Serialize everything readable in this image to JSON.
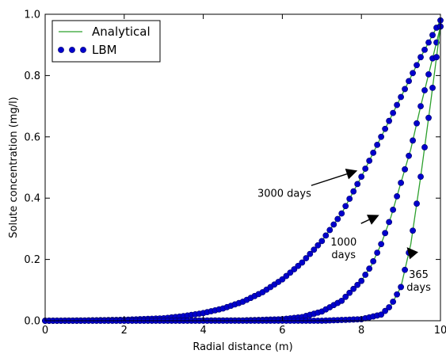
{
  "chart_data": {
    "type": "line",
    "xlabel": "Radial distance (m)",
    "ylabel": "Solute concentration (mg/l)",
    "xlim": [
      0,
      10
    ],
    "ylim": [
      0,
      1.0
    ],
    "xticks": [
      0,
      2,
      4,
      6,
      8,
      10
    ],
    "yticks": [
      0.0,
      0.2,
      0.4,
      0.6,
      0.8,
      1.0
    ],
    "xtick_labels": [
      "0",
      "2",
      "4",
      "6",
      "8",
      "10"
    ],
    "ytick_labels": [
      "0.0",
      "0.2",
      "0.4",
      "0.6",
      "0.8",
      "1.0"
    ],
    "grid": false,
    "legend": {
      "placement": "top-left",
      "entries": [
        {
          "label": "Analytical",
          "style": "line",
          "color": "#2ca02c"
        },
        {
          "label": "LBM",
          "style": "markers",
          "color": "#0000cc"
        }
      ]
    },
    "series": [
      {
        "name": "3000 days",
        "x": [
          0,
          1,
          2,
          3,
          3.5,
          4,
          4.5,
          5,
          5.5,
          6,
          6.5,
          7,
          7.5,
          8,
          8.5,
          9,
          9.5,
          10
        ],
        "y": [
          0.0,
          0.001,
          0.003,
          0.008,
          0.015,
          0.025,
          0.04,
          0.062,
          0.093,
          0.135,
          0.19,
          0.26,
          0.35,
          0.47,
          0.6,
          0.73,
          0.86,
          0.98
        ]
      },
      {
        "name": "1000 days",
        "x": [
          0,
          5,
          6,
          6.5,
          7,
          7.5,
          8,
          8.25,
          8.5,
          8.75,
          9,
          9.25,
          9.5,
          9.75,
          10
        ],
        "y": [
          0.0,
          0.001,
          0.005,
          0.012,
          0.03,
          0.065,
          0.13,
          0.18,
          0.25,
          0.34,
          0.45,
          0.56,
          0.7,
          0.83,
          0.96
        ]
      },
      {
        "name": "365 days",
        "x": [
          0,
          7,
          8,
          8.5,
          8.75,
          9,
          9.25,
          9.5,
          9.75,
          10
        ],
        "y": [
          0.0,
          0.0,
          0.005,
          0.02,
          0.05,
          0.11,
          0.25,
          0.47,
          0.71,
          0.96
        ]
      }
    ],
    "annotations": [
      {
        "lines": [
          "3000 days"
        ],
        "text_at": [
          6.05,
          0.405
        ],
        "arrow_to": [
          7.9,
          0.49
        ]
      },
      {
        "lines": [
          "1000",
          "days"
        ],
        "text_at": [
          7.55,
          0.245
        ],
        "arrow_to": [
          8.45,
          0.345
        ]
      },
      {
        "lines": [
          "365",
          "days"
        ],
        "text_at": [
          9.45,
          0.14
        ],
        "arrow_to": [
          9.15,
          0.24
        ]
      }
    ],
    "colors": {
      "analytical": "#2ca02c",
      "lbm": "#0000cc",
      "lbm_edge": "#000066"
    }
  }
}
